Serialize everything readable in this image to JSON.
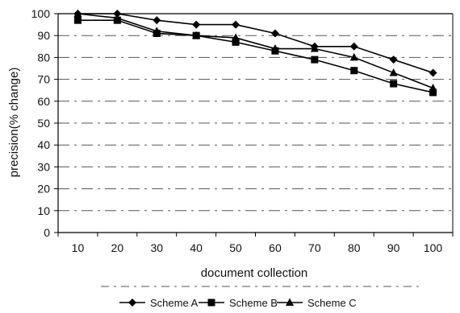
{
  "chart_data": {
    "type": "line",
    "title": "",
    "xlabel": "document collection",
    "ylabel": "precision(% change)",
    "categories": [
      "10",
      "20",
      "30",
      "40",
      "50",
      "60",
      "70",
      "80",
      "90",
      "100"
    ],
    "ylim": [
      0,
      100
    ],
    "yticks": [
      "0",
      "10",
      "20",
      "30",
      "40",
      "50",
      "60",
      "70",
      "80",
      "90",
      "100"
    ],
    "grid": "horizontal dashed",
    "legend": "bottom",
    "series": [
      {
        "name": "Scheme A",
        "marker": "diamond",
        "values": [
          100,
          100,
          97,
          95,
          95,
          91,
          85,
          85,
          79,
          73
        ]
      },
      {
        "name": "Scheme B",
        "marker": "square",
        "values": [
          97,
          97,
          91,
          90,
          87,
          83,
          79,
          74,
          68,
          64
        ]
      },
      {
        "name": "Scheme C",
        "marker": "triangle",
        "values": [
          100,
          98,
          92,
          90,
          89,
          84,
          84,
          80,
          73,
          66
        ]
      }
    ],
    "colors": {
      "line": "#000000",
      "grid": "#555555"
    }
  }
}
